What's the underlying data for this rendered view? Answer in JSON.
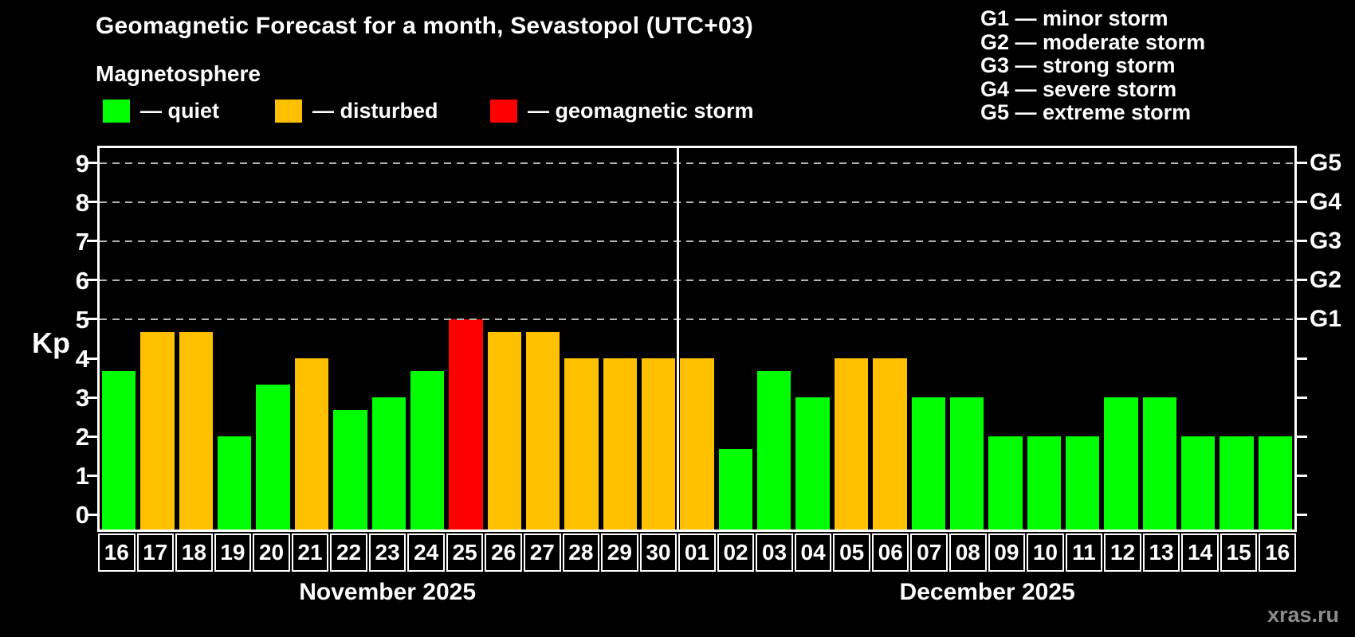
{
  "title": "Geomagnetic Forecast for a month, Sevastopol (UTC+03)",
  "subtitle": "Magnetosphere",
  "legend": [
    {
      "key": "quiet",
      "label": "— quiet",
      "color": "#00ff00"
    },
    {
      "key": "disturbed",
      "label": "— disturbed",
      "color": "#ffc000"
    },
    {
      "key": "storm",
      "label": "— geomagnetic storm",
      "color": "#ff0000"
    }
  ],
  "g_scale_legend": [
    "G1 — minor storm",
    "G2 — moderate storm",
    "G3 — strong storm",
    "G4 — severe storm",
    "G5 — extreme storm"
  ],
  "watermark": "xras.ru",
  "chart_data": {
    "type": "bar",
    "title": "Geomagnetic Forecast for a month, Sevastopol (UTC+03)",
    "ylabel": "Kp",
    "xlabel": "",
    "ylim": [
      -0.38,
      9.38
    ],
    "y_ticks": [
      0,
      1,
      2,
      3,
      4,
      5,
      6,
      7,
      8,
      9
    ],
    "grid": "horizontal dashed gray lines at Kp 5,6,7,8,9",
    "legend_position": "top-left",
    "g_levels": [
      {
        "label": "G1",
        "kp": 5
      },
      {
        "label": "G2",
        "kp": 6
      },
      {
        "label": "G3",
        "kp": 7
      },
      {
        "label": "G4",
        "kp": 8
      },
      {
        "label": "G5",
        "kp": 9
      }
    ],
    "months": [
      {
        "label": "November 2025",
        "start": 0,
        "count": 15
      },
      {
        "label": "December 2025",
        "start": 15,
        "count": 16
      }
    ],
    "separator_index": 15,
    "colors": {
      "quiet": "#00ff00",
      "disturbed": "#ffc000",
      "storm": "#ff0000"
    },
    "bars": [
      {
        "day": "16",
        "month": "November",
        "kp": 3.67,
        "status": "quiet"
      },
      {
        "day": "17",
        "month": "November",
        "kp": 4.67,
        "status": "disturbed"
      },
      {
        "day": "18",
        "month": "November",
        "kp": 4.67,
        "status": "disturbed"
      },
      {
        "day": "19",
        "month": "November",
        "kp": 2.0,
        "status": "quiet"
      },
      {
        "day": "20",
        "month": "November",
        "kp": 3.33,
        "status": "quiet"
      },
      {
        "day": "21",
        "month": "November",
        "kp": 4.0,
        "status": "disturbed"
      },
      {
        "day": "22",
        "month": "November",
        "kp": 2.67,
        "status": "quiet"
      },
      {
        "day": "23",
        "month": "November",
        "kp": 3.0,
        "status": "quiet"
      },
      {
        "day": "24",
        "month": "November",
        "kp": 3.67,
        "status": "quiet"
      },
      {
        "day": "25",
        "month": "November",
        "kp": 5.0,
        "status": "storm"
      },
      {
        "day": "26",
        "month": "November",
        "kp": 4.67,
        "status": "disturbed"
      },
      {
        "day": "27",
        "month": "November",
        "kp": 4.67,
        "status": "disturbed"
      },
      {
        "day": "28",
        "month": "November",
        "kp": 4.0,
        "status": "disturbed"
      },
      {
        "day": "29",
        "month": "November",
        "kp": 4.0,
        "status": "disturbed"
      },
      {
        "day": "30",
        "month": "November",
        "kp": 4.0,
        "status": "disturbed"
      },
      {
        "day": "01",
        "month": "December",
        "kp": 4.0,
        "status": "disturbed"
      },
      {
        "day": "02",
        "month": "December",
        "kp": 1.67,
        "status": "quiet"
      },
      {
        "day": "03",
        "month": "December",
        "kp": 3.67,
        "status": "quiet"
      },
      {
        "day": "04",
        "month": "December",
        "kp": 3.0,
        "status": "quiet"
      },
      {
        "day": "05",
        "month": "December",
        "kp": 4.0,
        "status": "disturbed"
      },
      {
        "day": "06",
        "month": "December",
        "kp": 4.0,
        "status": "disturbed"
      },
      {
        "day": "07",
        "month": "December",
        "kp": 3.0,
        "status": "quiet"
      },
      {
        "day": "08",
        "month": "December",
        "kp": 3.0,
        "status": "quiet"
      },
      {
        "day": "09",
        "month": "December",
        "kp": 2.0,
        "status": "quiet"
      },
      {
        "day": "10",
        "month": "December",
        "kp": 2.0,
        "status": "quiet"
      },
      {
        "day": "11",
        "month": "December",
        "kp": 2.0,
        "status": "quiet"
      },
      {
        "day": "12",
        "month": "December",
        "kp": 3.0,
        "status": "quiet"
      },
      {
        "day": "13",
        "month": "December",
        "kp": 3.0,
        "status": "quiet"
      },
      {
        "day": "14",
        "month": "December",
        "kp": 2.0,
        "status": "quiet"
      },
      {
        "day": "15",
        "month": "December",
        "kp": 2.0,
        "status": "quiet"
      },
      {
        "day": "16",
        "month": "December",
        "kp": 2.0,
        "status": "quiet"
      }
    ]
  }
}
